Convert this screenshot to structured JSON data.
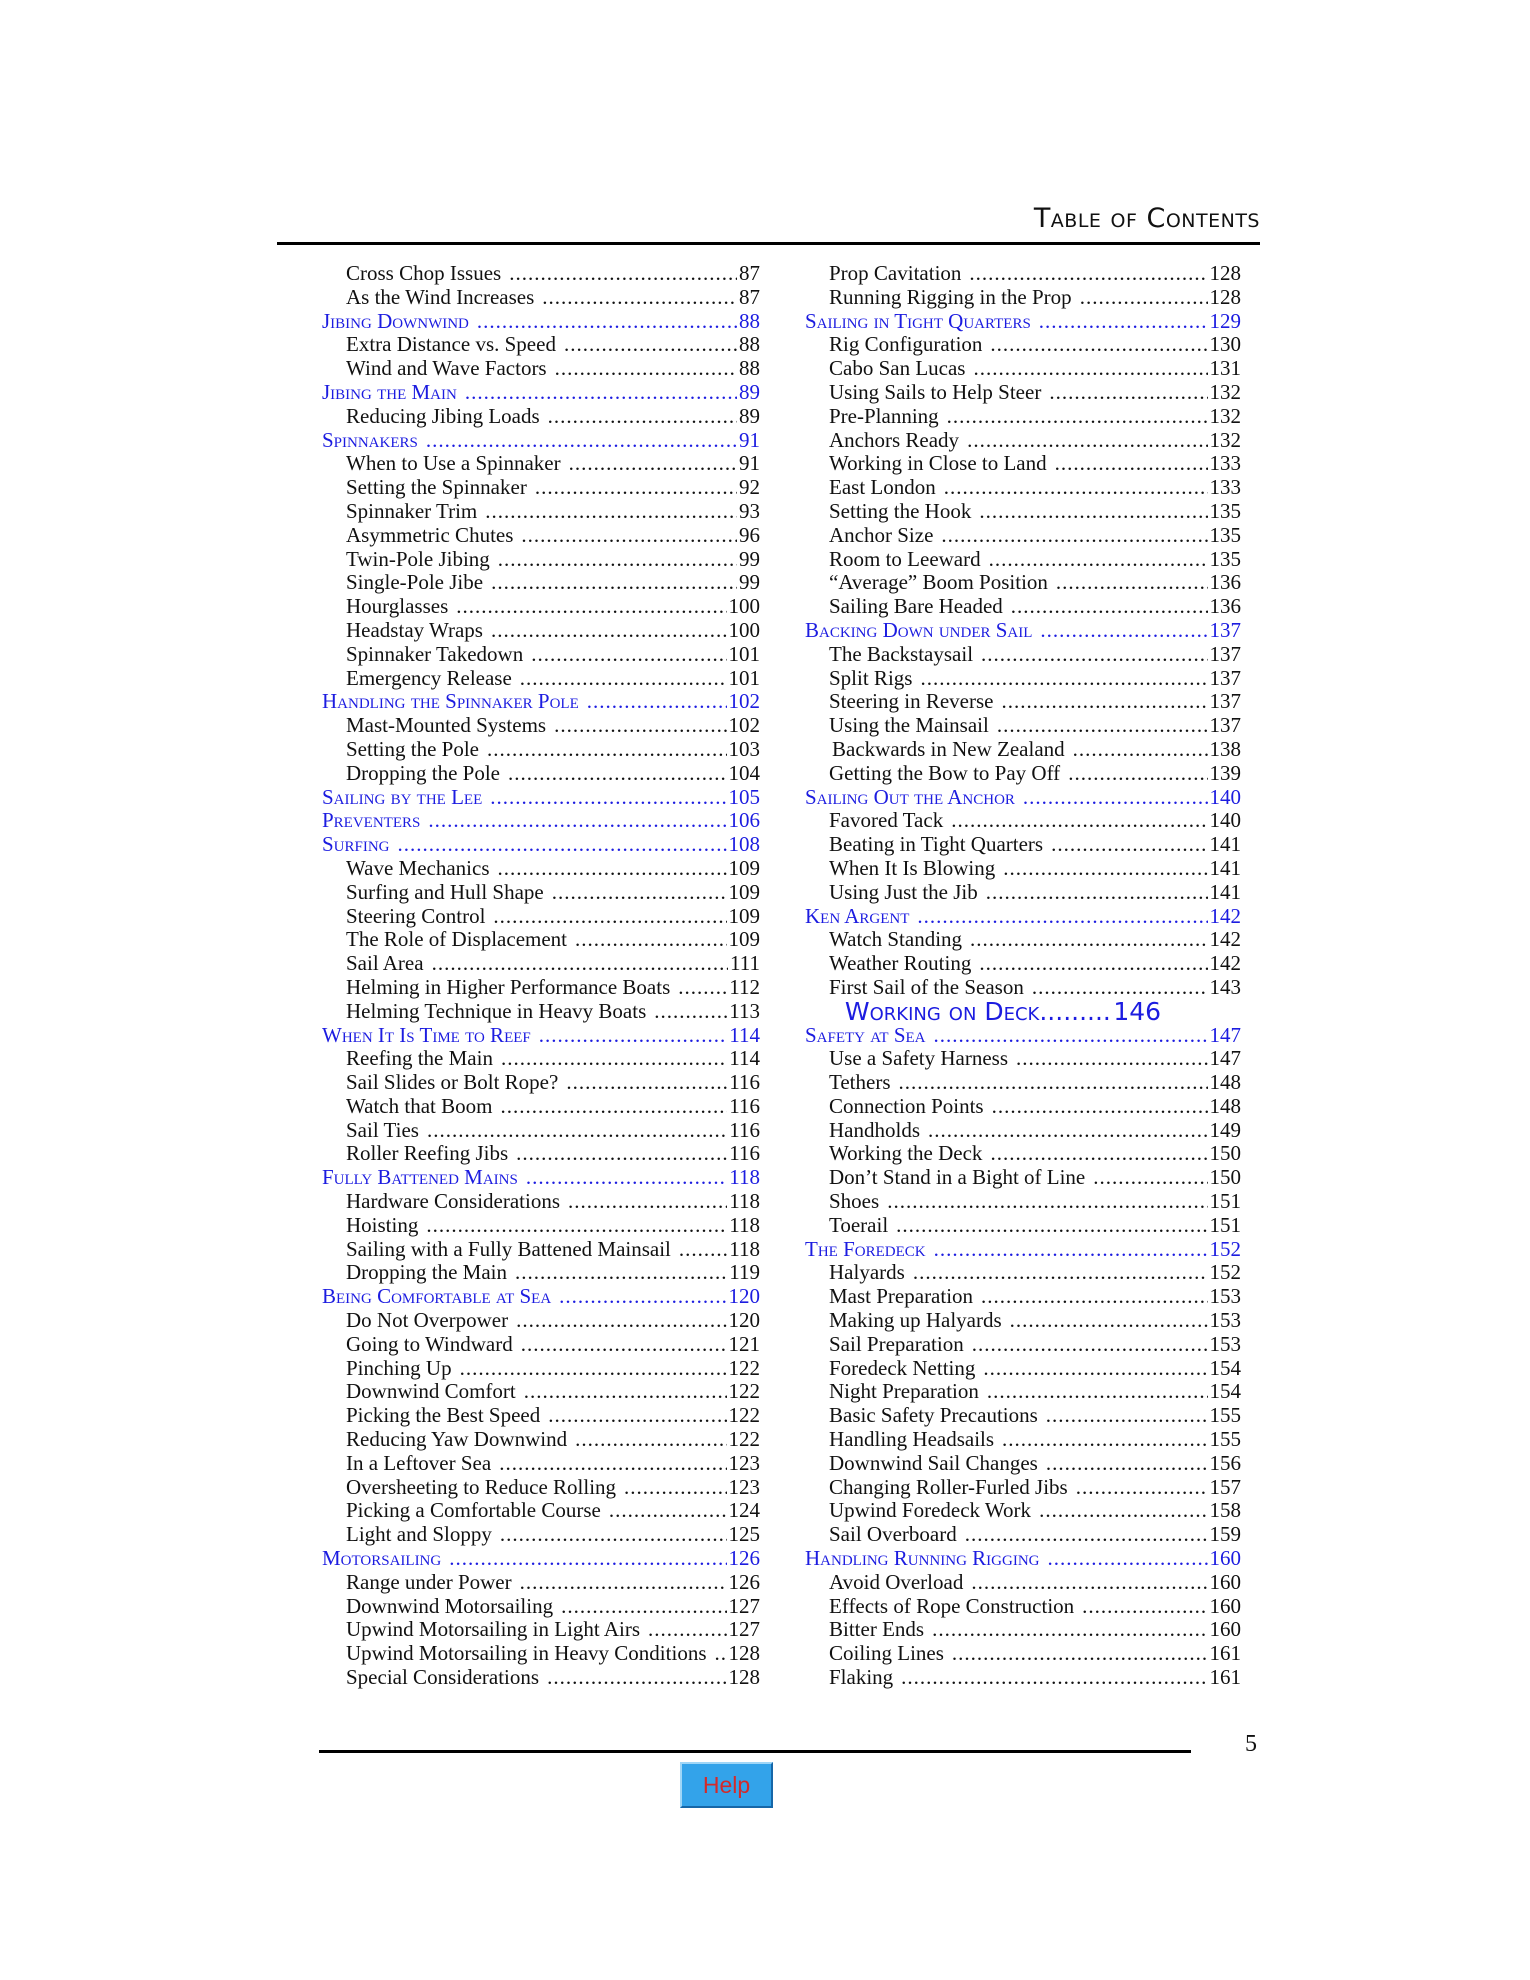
{
  "header": {
    "title": "Table of Contents"
  },
  "footer": {
    "page_number": "5",
    "help_label": "Help"
  },
  "colors": {
    "link": "#1c1ce0",
    "help_button": "#33a3ea",
    "help_text": "#d42a2a"
  },
  "columns": {
    "left": [
      {
        "t": "Cross Chop Issues",
        "p": "87",
        "k": "sub"
      },
      {
        "t": "As the Wind Increases",
        "p": "87",
        "k": "sub"
      },
      {
        "t": "Jibing Downwind",
        "p": "88",
        "k": "section"
      },
      {
        "t": "Extra Distance vs. Speed",
        "p": "88",
        "k": "sub"
      },
      {
        "t": "Wind and Wave Factors",
        "p": "88",
        "k": "sub"
      },
      {
        "t": "Jibing the Main",
        "p": "89",
        "k": "section"
      },
      {
        "t": "Reducing Jibing Loads",
        "p": "89",
        "k": "sub"
      },
      {
        "t": "Spinnakers",
        "p": "91",
        "k": "section"
      },
      {
        "t": "When to Use a Spinnaker",
        "p": "91",
        "k": "sub"
      },
      {
        "t": "Setting the Spinnaker",
        "p": "92",
        "k": "sub"
      },
      {
        "t": "Spinnaker Trim",
        "p": "93",
        "k": "sub"
      },
      {
        "t": "Asymmetric Chutes",
        "p": "96",
        "k": "sub"
      },
      {
        "t": "Twin-Pole Jibing",
        "p": "99",
        "k": "sub"
      },
      {
        "t": "Single-Pole Jibe",
        "p": "99",
        "k": "sub"
      },
      {
        "t": "Hourglasses",
        "p": "100",
        "k": "sub"
      },
      {
        "t": "Headstay Wraps",
        "p": "100",
        "k": "sub"
      },
      {
        "t": "Spinnaker Takedown",
        "p": "101",
        "k": "sub"
      },
      {
        "t": "Emergency Release",
        "p": "101",
        "k": "sub"
      },
      {
        "t": "Handling the Spinnaker Pole",
        "p": "102",
        "k": "section"
      },
      {
        "t": "Mast-Mounted Systems",
        "p": "102",
        "k": "sub"
      },
      {
        "t": "Setting the Pole",
        "p": "103",
        "k": "sub"
      },
      {
        "t": "Dropping the Pole",
        "p": "104",
        "k": "sub"
      },
      {
        "t": "Sailing by the Lee",
        "p": "105",
        "k": "section"
      },
      {
        "t": "Preventers",
        "p": "106",
        "k": "section"
      },
      {
        "t": "Surfing",
        "p": "108",
        "k": "section"
      },
      {
        "t": "Wave Mechanics",
        "p": "109",
        "k": "sub"
      },
      {
        "t": "Surfing and Hull Shape",
        "p": "109",
        "k": "sub"
      },
      {
        "t": "Steering Control",
        "p": "109",
        "k": "sub"
      },
      {
        "t": "The Role of Displacement",
        "p": "109",
        "k": "sub"
      },
      {
        "t": "Sail Area",
        "p": "111",
        "k": "sub"
      },
      {
        "t": "Helming in Higher Performance Boats",
        "p": "112",
        "k": "sub"
      },
      {
        "t": "Helming Technique in Heavy Boats",
        "p": "113",
        "k": "sub"
      },
      {
        "t": "When It Is Time to Reef",
        "p": "114",
        "k": "section"
      },
      {
        "t": "Reefing the Main",
        "p": "114",
        "k": "sub"
      },
      {
        "t": "Sail Slides or Bolt Rope?",
        "p": "116",
        "k": "sub"
      },
      {
        "t": "Watch that Boom",
        "p": "116",
        "k": "sub"
      },
      {
        "t": "Sail Ties",
        "p": "116",
        "k": "sub"
      },
      {
        "t": "Roller Reefing Jibs",
        "p": "116",
        "k": "sub"
      },
      {
        "t": "Fully Battened Mains",
        "p": "118",
        "k": "section"
      },
      {
        "t": "Hardware Considerations",
        "p": "118",
        "k": "sub"
      },
      {
        "t": "Hoisting",
        "p": "118",
        "k": "sub"
      },
      {
        "t": "Sailing with a Fully Battened Mainsail",
        "p": "118",
        "k": "sub"
      },
      {
        "t": "Dropping the Main",
        "p": "119",
        "k": "sub"
      },
      {
        "t": "Being Comfortable at Sea",
        "p": "120",
        "k": "section"
      },
      {
        "t": "Do Not Overpower",
        "p": "120",
        "k": "sub"
      },
      {
        "t": "Going to Windward",
        "p": "121",
        "k": "sub"
      },
      {
        "t": "Pinching Up",
        "p": "122",
        "k": "sub"
      },
      {
        "t": "Downwind Comfort",
        "p": "122",
        "k": "sub"
      },
      {
        "t": "Picking the Best Speed",
        "p": "122",
        "k": "sub"
      },
      {
        "t": "Reducing Yaw Downwind",
        "p": "122",
        "k": "sub"
      },
      {
        "t": "In a Leftover Sea",
        "p": "123",
        "k": "sub"
      },
      {
        "t": "Oversheeting to Reduce Rolling",
        "p": "123",
        "k": "sub"
      },
      {
        "t": "Picking a Comfortable Course",
        "p": "124",
        "k": "sub"
      },
      {
        "t": "Light and Sloppy",
        "p": "125",
        "k": "sub"
      },
      {
        "t": "Motorsailing",
        "p": "126",
        "k": "section"
      },
      {
        "t": "Range under Power",
        "p": "126",
        "k": "sub"
      },
      {
        "t": "Downwind Motorsailing",
        "p": "127",
        "k": "sub"
      },
      {
        "t": "Upwind Motorsailing in Light Airs",
        "p": "127",
        "k": "sub"
      },
      {
        "t": "Upwind Motorsailing in Heavy Conditions",
        "p": "128",
        "k": "sub"
      },
      {
        "t": "Special Considerations",
        "p": "128",
        "k": "sub"
      }
    ],
    "right": [
      {
        "t": "Prop Cavitation",
        "p": "128",
        "k": "sub"
      },
      {
        "t": "Running Rigging in the Prop",
        "p": "128",
        "k": "sub"
      },
      {
        "t": "Sailing in Tight Quarters",
        "p": "129",
        "k": "section"
      },
      {
        "t": "Rig Configuration",
        "p": "130",
        "k": "sub"
      },
      {
        "t": "Cabo San Lucas",
        "p": "131",
        "k": "sub"
      },
      {
        "t": "Using Sails to Help Steer",
        "p": "132",
        "k": "sub"
      },
      {
        "t": "Pre-Planning",
        "p": "132",
        "k": "sub"
      },
      {
        "t": "Anchors Ready",
        "p": "132",
        "k": "sub"
      },
      {
        "t": "Working in Close to Land",
        "p": "133",
        "k": "sub"
      },
      {
        "t": "East London",
        "p": "133",
        "k": "sub"
      },
      {
        "t": "Setting the Hook",
        "p": "135",
        "k": "sub"
      },
      {
        "t": "Anchor Size",
        "p": "135",
        "k": "sub"
      },
      {
        "t": "Room to Leeward",
        "p": "135",
        "k": "sub"
      },
      {
        "t": "“Average” Boom Position",
        "p": "136",
        "k": "sub"
      },
      {
        "t": "Sailing Bare Headed",
        "p": "136",
        "k": "sub"
      },
      {
        "t": "Backing Down under Sail",
        "p": "137",
        "k": "section"
      },
      {
        "t": "The Backstaysail",
        "p": "137",
        "k": "sub"
      },
      {
        "t": "Split Rigs",
        "p": "137",
        "k": "sub"
      },
      {
        "t": "Steering in Reverse",
        "p": "137",
        "k": "sub"
      },
      {
        "t": "Using the Mainsail",
        "p": "137",
        "k": "sub"
      },
      {
        "t": "Backwards in New Zealand",
        "p": "138",
        "k": "sub indent"
      },
      {
        "t": "Getting the Bow to Pay Off",
        "p": "139",
        "k": "sub"
      },
      {
        "t": "Sailing Out the Anchor",
        "p": "140",
        "k": "section"
      },
      {
        "t": "Favored Tack",
        "p": "140",
        "k": "sub"
      },
      {
        "t": "Beating in Tight Quarters",
        "p": "141",
        "k": "sub"
      },
      {
        "t": "When It Is Blowing",
        "p": "141",
        "k": "sub"
      },
      {
        "t": "Using Just the Jib",
        "p": "141",
        "k": "sub"
      },
      {
        "t": "Ken Argent",
        "p": "142",
        "k": "section"
      },
      {
        "t": "Watch Standing",
        "p": "142",
        "k": "sub"
      },
      {
        "t": "Weather Routing",
        "p": "142",
        "k": "sub"
      },
      {
        "t": "First Sail of the Season",
        "p": "143",
        "k": "sub"
      },
      {
        "t": "Working on Deck",
        "p": "146",
        "k": "part"
      },
      {
        "t": "Safety at Sea",
        "p": "147",
        "k": "section"
      },
      {
        "t": "Use a Safety Harness",
        "p": "147",
        "k": "sub"
      },
      {
        "t": "Tethers",
        "p": "148",
        "k": "sub"
      },
      {
        "t": "Connection Points",
        "p": "148",
        "k": "sub"
      },
      {
        "t": "Handholds",
        "p": "149",
        "k": "sub"
      },
      {
        "t": "Working the Deck",
        "p": "150",
        "k": "sub"
      },
      {
        "t": "Don’t Stand in a Bight of Line",
        "p": "150",
        "k": "sub"
      },
      {
        "t": "Shoes",
        "p": "151",
        "k": "sub"
      },
      {
        "t": "Toerail",
        "p": "151",
        "k": "sub"
      },
      {
        "t": "The Foredeck",
        "p": "152",
        "k": "section"
      },
      {
        "t": "Halyards",
        "p": "152",
        "k": "sub"
      },
      {
        "t": "Mast Preparation",
        "p": "153",
        "k": "sub"
      },
      {
        "t": "Making up Halyards",
        "p": "153",
        "k": "sub"
      },
      {
        "t": "Sail Preparation",
        "p": "153",
        "k": "sub"
      },
      {
        "t": "Foredeck Netting",
        "p": "154",
        "k": "sub"
      },
      {
        "t": "Night Preparation",
        "p": "154",
        "k": "sub"
      },
      {
        "t": "Basic Safety Precautions",
        "p": "155",
        "k": "sub"
      },
      {
        "t": "Handling Headsails",
        "p": "155",
        "k": "sub"
      },
      {
        "t": "Downwind Sail Changes",
        "p": "156",
        "k": "sub"
      },
      {
        "t": "Changing Roller-Furled Jibs",
        "p": "157",
        "k": "sub"
      },
      {
        "t": "Upwind Foredeck Work",
        "p": "158",
        "k": "sub"
      },
      {
        "t": "Sail Overboard",
        "p": "159",
        "k": "sub"
      },
      {
        "t": "Handling Running Rigging",
        "p": "160",
        "k": "section"
      },
      {
        "t": "Avoid Overload",
        "p": "160",
        "k": "sub"
      },
      {
        "t": "Effects of Rope Construction",
        "p": "160",
        "k": "sub"
      },
      {
        "t": "Bitter Ends",
        "p": "160",
        "k": "sub"
      },
      {
        "t": "Coiling Lines",
        "p": "161",
        "k": "sub"
      },
      {
        "t": "Flaking",
        "p": "161",
        "k": "sub"
      }
    ]
  }
}
